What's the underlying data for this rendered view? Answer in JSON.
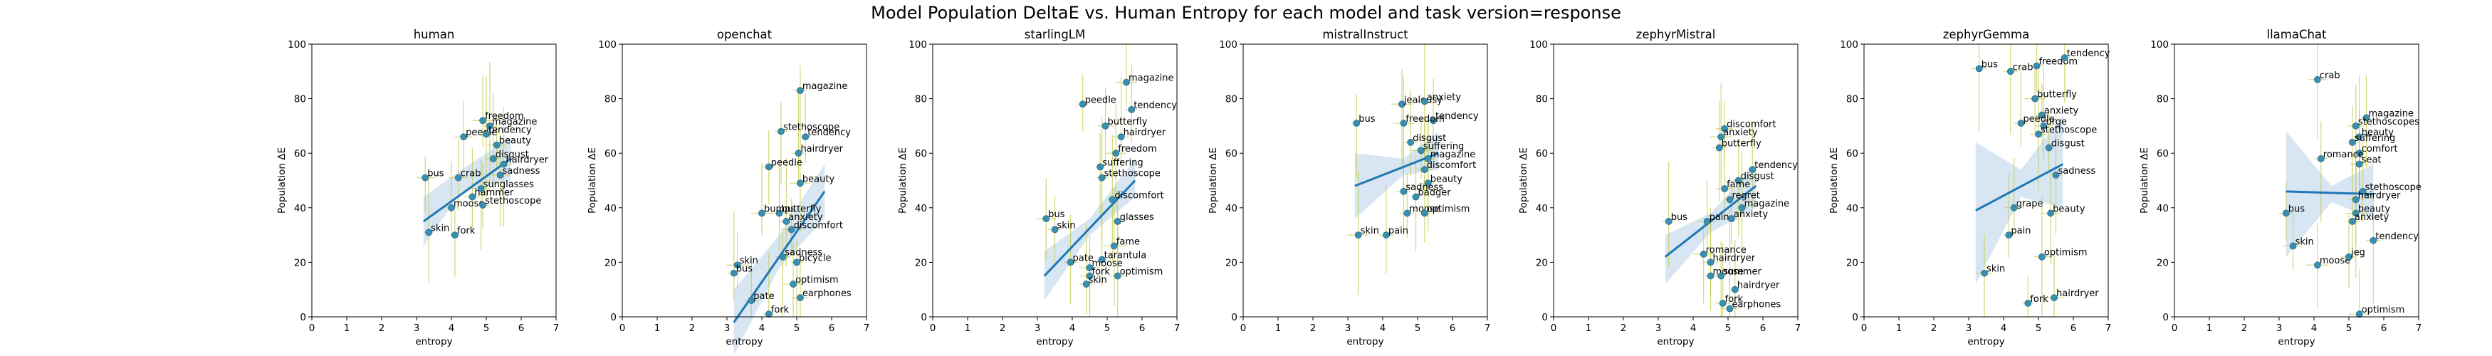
{
  "chart_data": {
    "type": "scatter",
    "title": "Model Population DeltaE vs. Human Entropy for each model and task version=response",
    "xlabel": "entropy",
    "ylabel": "Population ΔE",
    "xlim": [
      0,
      7
    ],
    "ylim": [
      0,
      100
    ],
    "xticks": [
      "0",
      "1",
      "2",
      "3",
      "4",
      "5",
      "6",
      "7"
    ],
    "yticks": [
      "0",
      "20",
      "40",
      "60",
      "80",
      "100"
    ],
    "grid": false,
    "colors": {
      "point": "#3a8fb0",
      "errorbar": "#c4c94a",
      "fit": "#1f77b4",
      "band": "#a6c8e3"
    },
    "panels": [
      {
        "title": "human",
        "fit": {
          "x": [
            3.2,
            5.7
          ],
          "y": [
            35,
            58
          ],
          "band": [
            [
              3.2,
              26,
              44
            ],
            [
              4.3,
              46,
              54
            ],
            [
              5.7,
              50,
              66
            ]
          ]
        },
        "points": [
          {
            "label": "bus",
            "x": 3.25,
            "y": 51
          },
          {
            "label": "skin",
            "x": 3.35,
            "y": 31
          },
          {
            "label": "fork",
            "x": 4.1,
            "y": 30
          },
          {
            "label": "moose",
            "x": 4.0,
            "y": 40
          },
          {
            "label": "crab",
            "x": 4.2,
            "y": 51
          },
          {
            "label": "stethoscope",
            "x": 4.9,
            "y": 41
          },
          {
            "label": "hammer",
            "x": 4.6,
            "y": 44
          },
          {
            "label": "sunglasses",
            "x": 4.85,
            "y": 47
          },
          {
            "label": "peedle",
            "x": 4.35,
            "y": 66
          },
          {
            "label": "freedom",
            "x": 4.9,
            "y": 72
          },
          {
            "label": "magazine",
            "x": 5.1,
            "y": 70
          },
          {
            "label": "tendency",
            "x": 5.0,
            "y": 67
          },
          {
            "label": "beauty",
            "x": 5.3,
            "y": 63
          },
          {
            "label": "disgust",
            "x": 5.2,
            "y": 58
          },
          {
            "label": "hairdryer",
            "x": 5.5,
            "y": 56
          },
          {
            "label": "sadness",
            "x": 5.4,
            "y": 52
          }
        ]
      },
      {
        "title": "openchat",
        "fit": {
          "x": [
            3.2,
            5.8
          ],
          "y": [
            -2,
            46
          ],
          "band": [
            [
              3.2,
              -14,
              10
            ],
            [
              4.5,
              18,
              30
            ],
            [
              5.8,
              36,
              56
            ]
          ]
        },
        "points": [
          {
            "label": "skin",
            "x": 3.3,
            "y": 19
          },
          {
            "label": "bus",
            "x": 3.2,
            "y": 16
          },
          {
            "label": "magazine",
            "x": 5.1,
            "y": 83
          },
          {
            "label": "stethoscope",
            "x": 4.55,
            "y": 68
          },
          {
            "label": "tendency",
            "x": 5.25,
            "y": 66
          },
          {
            "label": "hairdryer",
            "x": 5.05,
            "y": 60
          },
          {
            "label": "peedle",
            "x": 4.2,
            "y": 55
          },
          {
            "label": "beauty",
            "x": 5.1,
            "y": 49
          },
          {
            "label": "butterfly",
            "x": 4.5,
            "y": 38
          },
          {
            "label": "anxiety",
            "x": 4.7,
            "y": 35
          },
          {
            "label": "discomfort",
            "x": 4.85,
            "y": 32
          },
          {
            "label": "bumps",
            "x": 4.0,
            "y": 38
          },
          {
            "label": "sadness",
            "x": 4.6,
            "y": 22
          },
          {
            "label": "bicycle",
            "x": 5.0,
            "y": 20
          },
          {
            "label": "pate",
            "x": 3.7,
            "y": 6
          },
          {
            "label": "optimism",
            "x": 4.9,
            "y": 12
          },
          {
            "label": "earphones",
            "x": 5.1,
            "y": 7
          },
          {
            "label": "fork",
            "x": 4.2,
            "y": 1
          }
        ]
      },
      {
        "title": "starlingLM",
        "fit": {
          "x": [
            3.2,
            5.8
          ],
          "y": [
            15,
            50
          ],
          "band": [
            [
              3.2,
              6,
              24
            ],
            [
              4.5,
              30,
              36
            ],
            [
              5.8,
              44,
              58
            ]
          ]
        },
        "points": [
          {
            "label": "magazine",
            "x": 5.55,
            "y": 86
          },
          {
            "label": "peedle",
            "x": 4.3,
            "y": 78
          },
          {
            "label": "tendency",
            "x": 5.7,
            "y": 76
          },
          {
            "label": "butterfly",
            "x": 4.95,
            "y": 70
          },
          {
            "label": "hairdryer",
            "x": 5.4,
            "y": 66
          },
          {
            "label": "freedom",
            "x": 5.25,
            "y": 60
          },
          {
            "label": "suffering",
            "x": 4.8,
            "y": 55
          },
          {
            "label": "stethoscope",
            "x": 4.85,
            "y": 51
          },
          {
            "label": "discomfort",
            "x": 5.15,
            "y": 43
          },
          {
            "label": "bus",
            "x": 3.25,
            "y": 36
          },
          {
            "label": "skin",
            "x": 3.5,
            "y": 32
          },
          {
            "label": "glasses",
            "x": 5.3,
            "y": 35
          },
          {
            "label": "fame",
            "x": 5.2,
            "y": 26
          },
          {
            "label": "tarantula",
            "x": 4.85,
            "y": 21
          },
          {
            "label": "pate",
            "x": 3.95,
            "y": 20
          },
          {
            "label": "moose",
            "x": 4.5,
            "y": 18
          },
          {
            "label": "optimism",
            "x": 5.3,
            "y": 15
          },
          {
            "label": "fork",
            "x": 4.5,
            "y": 15
          },
          {
            "label": "skin",
            "x": 4.4,
            "y": 12
          }
        ]
      },
      {
        "title": "mistralInstruct",
        "fit": {
          "x": [
            3.2,
            5.6
          ],
          "y": [
            48,
            60
          ],
          "band": [
            [
              3.2,
              36,
              60
            ],
            [
              4.6,
              52,
              58
            ],
            [
              5.6,
              54,
              68
            ]
          ]
        },
        "points": [
          {
            "label": "bus",
            "x": 3.25,
            "y": 71
          },
          {
            "label": "jealousy",
            "x": 4.55,
            "y": 78
          },
          {
            "label": "anxiety",
            "x": 5.2,
            "y": 79
          },
          {
            "label": "tendency",
            "x": 5.45,
            "y": 72
          },
          {
            "label": "freedom",
            "x": 4.6,
            "y": 71
          },
          {
            "label": "disgust",
            "x": 4.8,
            "y": 64
          },
          {
            "label": "suffering",
            "x": 5.1,
            "y": 61
          },
          {
            "label": "magazine",
            "x": 5.3,
            "y": 58
          },
          {
            "label": "discomfort",
            "x": 5.2,
            "y": 54
          },
          {
            "label": "beauty",
            "x": 5.3,
            "y": 49
          },
          {
            "label": "badger",
            "x": 4.95,
            "y": 44
          },
          {
            "label": "sadness",
            "x": 4.6,
            "y": 46
          },
          {
            "label": "moose",
            "x": 4.7,
            "y": 38
          },
          {
            "label": "optimism",
            "x": 5.2,
            "y": 38
          },
          {
            "label": "pain",
            "x": 4.1,
            "y": 30
          },
          {
            "label": "skin",
            "x": 3.3,
            "y": 30
          }
        ]
      },
      {
        "title": "zephyrMistral",
        "fit": {
          "x": [
            3.2,
            5.8
          ],
          "y": [
            22,
            48
          ],
          "band": [
            [
              3.2,
              12,
              30
            ],
            [
              4.5,
              31,
              38
            ],
            [
              5.8,
              40,
              56
            ]
          ]
        },
        "points": [
          {
            "label": "discomfort",
            "x": 4.9,
            "y": 69
          },
          {
            "label": "anxiety",
            "x": 4.8,
            "y": 66
          },
          {
            "label": "butterfly",
            "x": 4.75,
            "y": 62
          },
          {
            "label": "tendency",
            "x": 5.7,
            "y": 54
          },
          {
            "label": "disgust",
            "x": 5.3,
            "y": 50
          },
          {
            "label": "fame",
            "x": 4.9,
            "y": 47
          },
          {
            "label": "regret",
            "x": 5.05,
            "y": 43
          },
          {
            "label": "magazine",
            "x": 5.4,
            "y": 40
          },
          {
            "label": "bus",
            "x": 3.3,
            "y": 35
          },
          {
            "label": "pain",
            "x": 4.4,
            "y": 35
          },
          {
            "label": "anxiety",
            "x": 5.1,
            "y": 36
          },
          {
            "label": "romance",
            "x": 4.3,
            "y": 23
          },
          {
            "label": "hairdryer",
            "x": 4.5,
            "y": 20
          },
          {
            "label": "moose",
            "x": 4.5,
            "y": 15
          },
          {
            "label": "summer",
            "x": 4.8,
            "y": 15
          },
          {
            "label": "hairdryer",
            "x": 5.2,
            "y": 10
          },
          {
            "label": "fork",
            "x": 4.85,
            "y": 5
          },
          {
            "label": "earphones",
            "x": 5.05,
            "y": 3
          }
        ]
      },
      {
        "title": "zephyrGemma",
        "fit": {
          "x": [
            3.2,
            5.7
          ],
          "y": [
            39,
            56
          ],
          "band": [
            [
              3.2,
              12,
              64
            ],
            [
              4.5,
              44,
              54
            ],
            [
              5.7,
              40,
              74
            ]
          ]
        },
        "points": [
          {
            "label": "bus",
            "x": 3.3,
            "y": 91
          },
          {
            "label": "crab",
            "x": 4.2,
            "y": 90
          },
          {
            "label": "freedom",
            "x": 4.95,
            "y": 92
          },
          {
            "label": "tendency",
            "x": 5.75,
            "y": 95
          },
          {
            "label": "butterfly",
            "x": 4.9,
            "y": 80
          },
          {
            "label": "anxiety",
            "x": 5.1,
            "y": 74
          },
          {
            "label": "peedle",
            "x": 4.5,
            "y": 71
          },
          {
            "label": "urge",
            "x": 5.15,
            "y": 70
          },
          {
            "label": "stethoscope",
            "x": 5.0,
            "y": 67
          },
          {
            "label": "disgust",
            "x": 5.3,
            "y": 62
          },
          {
            "label": "sadness",
            "x": 5.5,
            "y": 52
          },
          {
            "label": "grape",
            "x": 4.3,
            "y": 40
          },
          {
            "label": "beauty",
            "x": 5.35,
            "y": 38
          },
          {
            "label": "pain",
            "x": 4.15,
            "y": 30
          },
          {
            "label": "optimism",
            "x": 5.1,
            "y": 22
          },
          {
            "label": "skin",
            "x": 3.45,
            "y": 16
          },
          {
            "label": "hairdryer",
            "x": 5.45,
            "y": 7
          },
          {
            "label": "fork",
            "x": 4.7,
            "y": 5
          }
        ]
      },
      {
        "title": "llamaChat",
        "fit": {
          "x": [
            3.2,
            5.7
          ],
          "y": [
            46,
            45
          ],
          "band": [
            [
              3.2,
              22,
              68
            ],
            [
              4.5,
              42,
              48
            ],
            [
              5.7,
              36,
              56
            ]
          ]
        },
        "points": [
          {
            "label": "crab",
            "x": 4.1,
            "y": 87
          },
          {
            "label": "magazine",
            "x": 5.5,
            "y": 73
          },
          {
            "label": "stethoscopes",
            "x": 5.2,
            "y": 70
          },
          {
            "label": "beauty",
            "x": 5.3,
            "y": 66
          },
          {
            "label": "suffering",
            "x": 5.1,
            "y": 64
          },
          {
            "label": "comfort",
            "x": 5.3,
            "y": 60
          },
          {
            "label": "romance",
            "x": 4.2,
            "y": 58
          },
          {
            "label": "seat",
            "x": 5.3,
            "y": 56
          },
          {
            "label": "stethoscope",
            "x": 5.4,
            "y": 46
          },
          {
            "label": "hairdryer",
            "x": 5.2,
            "y": 43
          },
          {
            "label": "bus",
            "x": 3.2,
            "y": 38
          },
          {
            "label": "beauty",
            "x": 5.2,
            "y": 38
          },
          {
            "label": "anxiety",
            "x": 5.1,
            "y": 35
          },
          {
            "label": "tendency",
            "x": 5.7,
            "y": 28
          },
          {
            "label": "skin",
            "x": 3.4,
            "y": 26
          },
          {
            "label": "moose",
            "x": 4.1,
            "y": 19
          },
          {
            "label": "jeg",
            "x": 5.0,
            "y": 22
          },
          {
            "label": "optimism",
            "x": 5.3,
            "y": 1
          }
        ]
      }
    ]
  }
}
